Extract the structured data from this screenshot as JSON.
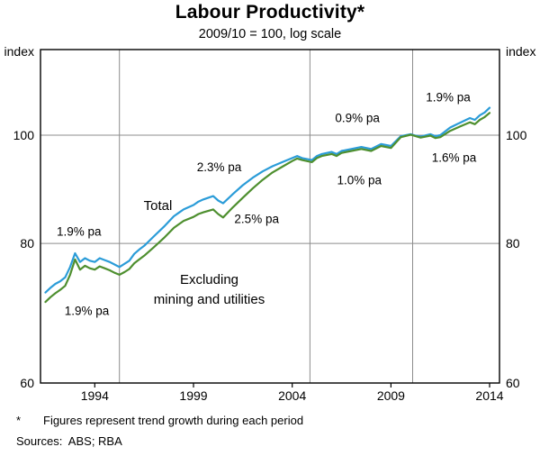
{
  "chart_data": {
    "type": "line",
    "title": "Labour Productivity*",
    "subtitle": "2009/10 = 100, log scale",
    "y_axis": {
      "label": "index",
      "scale": "log",
      "ticks": [
        60,
        80,
        100
      ],
      "min": 60,
      "max": 119.3
    },
    "x_axis": {
      "tick_years": [
        1994,
        1999,
        2004,
        2009,
        2014
      ],
      "min": 1991.25,
      "max": 2014.5
    },
    "period_separators": [
      1995.25,
      2004.9,
      2010.1
    ],
    "grid": "partial",
    "legend_position": "inline-labels",
    "colors": {
      "total": "#2b9cd8",
      "excluding": "#4e8f2f",
      "gridline": "#8c8c8c"
    },
    "series": [
      {
        "name": "Total",
        "key": "total",
        "color": "#2b9cd8",
        "points": [
          [
            1991.5,
            72.3
          ],
          [
            1991.75,
            73.0
          ],
          [
            1992.0,
            73.6
          ],
          [
            1992.25,
            74.0
          ],
          [
            1992.5,
            74.6
          ],
          [
            1992.75,
            76.2
          ],
          [
            1993.0,
            78.4
          ],
          [
            1993.25,
            77.0
          ],
          [
            1993.5,
            77.6
          ],
          [
            1993.75,
            77.2
          ],
          [
            1994.0,
            77.0
          ],
          [
            1994.25,
            77.6
          ],
          [
            1994.5,
            77.3
          ],
          [
            1994.75,
            77.0
          ],
          [
            1995.0,
            76.6
          ],
          [
            1995.25,
            76.2
          ],
          [
            1995.5,
            76.7
          ],
          [
            1995.75,
            77.2
          ],
          [
            1996.0,
            78.3
          ],
          [
            1996.25,
            79.0
          ],
          [
            1996.5,
            79.6
          ],
          [
            1997.0,
            81.2
          ],
          [
            1997.5,
            82.8
          ],
          [
            1998.0,
            84.6
          ],
          [
            1998.25,
            85.2
          ],
          [
            1998.5,
            85.8
          ],
          [
            1999.0,
            86.6
          ],
          [
            1999.25,
            87.2
          ],
          [
            1999.5,
            87.6
          ],
          [
            2000.0,
            88.2
          ],
          [
            2000.25,
            87.4
          ],
          [
            2000.5,
            86.9
          ],
          [
            2001.0,
            88.6
          ],
          [
            2001.5,
            90.2
          ],
          [
            2002.0,
            91.6
          ],
          [
            2002.5,
            92.8
          ],
          [
            2003.0,
            93.8
          ],
          [
            2003.5,
            94.6
          ],
          [
            2004.0,
            95.4
          ],
          [
            2004.25,
            95.8
          ],
          [
            2004.5,
            95.4
          ],
          [
            2005.0,
            95.0
          ],
          [
            2005.25,
            95.8
          ],
          [
            2005.5,
            96.2
          ],
          [
            2006.0,
            96.6
          ],
          [
            2006.25,
            96.2
          ],
          [
            2006.5,
            96.8
          ],
          [
            2007.0,
            97.2
          ],
          [
            2007.5,
            97.6
          ],
          [
            2008.0,
            97.2
          ],
          [
            2008.5,
            98.2
          ],
          [
            2009.0,
            97.8
          ],
          [
            2009.5,
            99.8
          ],
          [
            2010.0,
            100.2
          ],
          [
            2010.25,
            99.9
          ],
          [
            2010.5,
            99.7
          ],
          [
            2011.0,
            100.2
          ],
          [
            2011.25,
            99.8
          ],
          [
            2011.5,
            100.0
          ],
          [
            2012.0,
            101.6
          ],
          [
            2012.5,
            102.6
          ],
          [
            2013.0,
            103.6
          ],
          [
            2013.25,
            103.2
          ],
          [
            2013.5,
            104.2
          ],
          [
            2013.75,
            104.8
          ],
          [
            2014.0,
            105.8
          ]
        ]
      },
      {
        "name": "Excluding mining and utilities",
        "key": "excluding",
        "color": "#4e8f2f",
        "points": [
          [
            1991.5,
            70.9
          ],
          [
            1991.75,
            71.6
          ],
          [
            1992.0,
            72.2
          ],
          [
            1992.25,
            72.7
          ],
          [
            1992.5,
            73.3
          ],
          [
            1992.75,
            75.0
          ],
          [
            1993.0,
            77.4
          ],
          [
            1993.25,
            75.8
          ],
          [
            1993.5,
            76.4
          ],
          [
            1993.75,
            76.0
          ],
          [
            1994.0,
            75.8
          ],
          [
            1994.25,
            76.3
          ],
          [
            1994.5,
            76.0
          ],
          [
            1994.75,
            75.7
          ],
          [
            1995.0,
            75.3
          ],
          [
            1995.25,
            75.0
          ],
          [
            1995.5,
            75.4
          ],
          [
            1995.75,
            75.9
          ],
          [
            1996.0,
            76.8
          ],
          [
            1996.25,
            77.4
          ],
          [
            1996.5,
            78.0
          ],
          [
            1997.0,
            79.4
          ],
          [
            1997.5,
            80.9
          ],
          [
            1998.0,
            82.6
          ],
          [
            1998.25,
            83.2
          ],
          [
            1998.5,
            83.8
          ],
          [
            1999.0,
            84.5
          ],
          [
            1999.25,
            85.0
          ],
          [
            1999.5,
            85.3
          ],
          [
            2000.0,
            85.8
          ],
          [
            2000.25,
            85.0
          ],
          [
            2000.5,
            84.4
          ],
          [
            2001.0,
            86.2
          ],
          [
            2001.5,
            87.9
          ],
          [
            2002.0,
            89.6
          ],
          [
            2002.5,
            91.2
          ],
          [
            2003.0,
            92.6
          ],
          [
            2003.5,
            93.7
          ],
          [
            2004.0,
            94.8
          ],
          [
            2004.25,
            95.3
          ],
          [
            2004.5,
            95.0
          ],
          [
            2005.0,
            94.6
          ],
          [
            2005.25,
            95.4
          ],
          [
            2005.5,
            95.8
          ],
          [
            2006.0,
            96.2
          ],
          [
            2006.25,
            95.8
          ],
          [
            2006.5,
            96.4
          ],
          [
            2007.0,
            96.8
          ],
          [
            2007.5,
            97.2
          ],
          [
            2008.0,
            96.8
          ],
          [
            2008.5,
            97.8
          ],
          [
            2009.0,
            97.4
          ],
          [
            2009.5,
            99.6
          ],
          [
            2010.0,
            100.1
          ],
          [
            2010.25,
            99.8
          ],
          [
            2010.5,
            99.5
          ],
          [
            2011.0,
            99.9
          ],
          [
            2011.25,
            99.4
          ],
          [
            2011.5,
            99.6
          ],
          [
            2012.0,
            100.9
          ],
          [
            2012.5,
            101.8
          ],
          [
            2013.0,
            102.7
          ],
          [
            2013.25,
            102.3
          ],
          [
            2013.5,
            103.2
          ],
          [
            2013.75,
            103.8
          ],
          [
            2014.0,
            104.7
          ]
        ]
      }
    ],
    "series_labels": [
      {
        "text": "Total",
        "series": "total",
        "x": 1997.2,
        "y": 86.5
      },
      {
        "text": "Excluding",
        "series": "excluding",
        "x": 1999.8,
        "y": 74.3
      },
      {
        "text": "mining and utilities",
        "series": "excluding",
        "x": 1999.8,
        "y": 71.3
      }
    ],
    "annotations": [
      {
        "text": "1.9% pa",
        "series": "total",
        "x": 1993.2,
        "y": 82.0
      },
      {
        "text": "1.9% pa",
        "series": "excluding",
        "x": 1993.6,
        "y": 69.6
      },
      {
        "text": "2.3% pa",
        "series": "total",
        "x": 2000.3,
        "y": 93.6
      },
      {
        "text": "2.5% pa",
        "series": "excluding",
        "x": 2002.2,
        "y": 84.1
      },
      {
        "text": "0.9% pa",
        "series": "total",
        "x": 2007.3,
        "y": 103.6
      },
      {
        "text": "1.0% pa",
        "series": "excluding",
        "x": 2007.4,
        "y": 91.1
      },
      {
        "text": "1.9% pa",
        "series": "total",
        "x": 2011.9,
        "y": 108.1
      },
      {
        "text": "1.6% pa",
        "series": "excluding",
        "x": 2012.2,
        "y": 95.5
      }
    ],
    "footnote_marker": "*",
    "footnote": "Figures represent trend growth during each period",
    "sources": "Sources:  ABS; RBA"
  }
}
